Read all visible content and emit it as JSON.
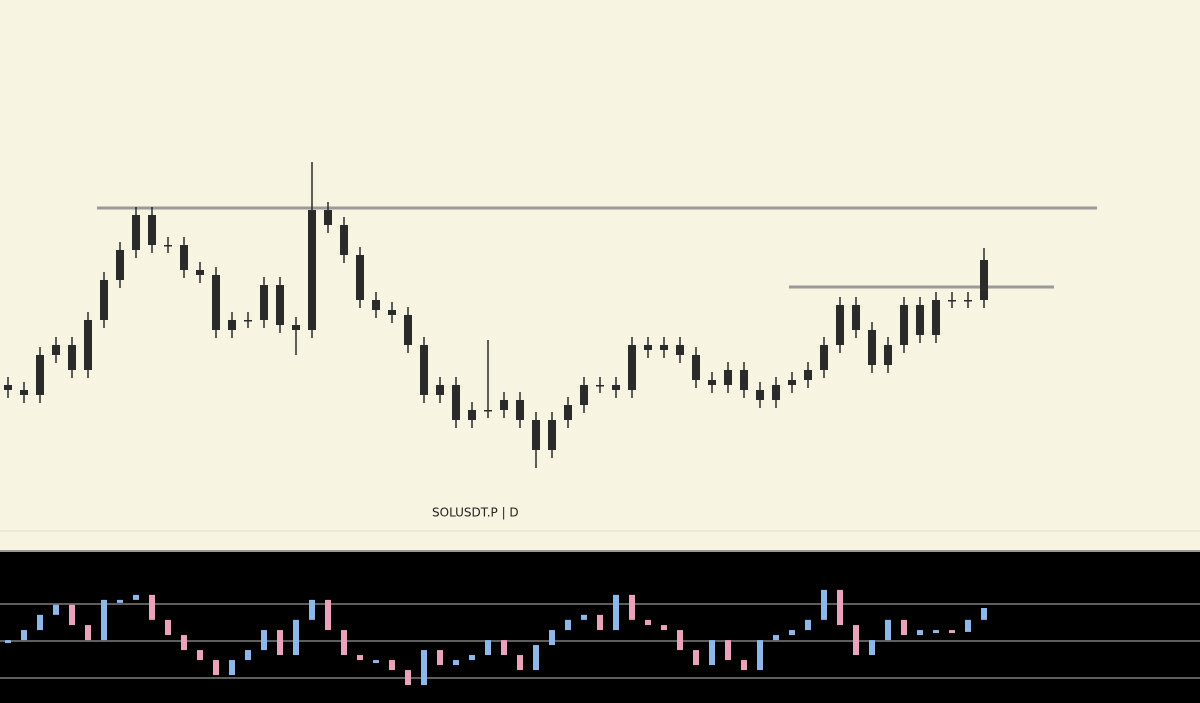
{
  "chart_data": [
    {
      "type": "candlestick",
      "title": "SOLUSDT.P | D",
      "color": "#2b2b2b",
      "level_color": "#9a9a9a",
      "ylim": [
        0,
        530
      ],
      "levels": [
        322,
        243
      ],
      "open": [
        145,
        140,
        135,
        175,
        185,
        160,
        210,
        250,
        280,
        315,
        285,
        285,
        260,
        255,
        200,
        210,
        210,
        245,
        205,
        200,
        320,
        305,
        275,
        230,
        220,
        215,
        185,
        135,
        145,
        110,
        120,
        120,
        130,
        110,
        80,
        110,
        125,
        145,
        145,
        140,
        185,
        180,
        185,
        175,
        150,
        145,
        160,
        140,
        130,
        145,
        150,
        160,
        185,
        225,
        200,
        165,
        185,
        225,
        195,
        230,
        230,
        230
      ],
      "high": [
        153,
        148,
        183,
        193,
        193,
        218,
        258,
        288,
        323,
        323,
        293,
        293,
        268,
        263,
        218,
        218,
        253,
        253,
        213,
        368,
        328,
        313,
        283,
        238,
        228,
        223,
        193,
        153,
        153,
        128,
        190,
        138,
        138,
        118,
        118,
        133,
        153,
        153,
        153,
        193,
        193,
        193,
        193,
        183,
        158,
        168,
        168,
        148,
        153,
        158,
        168,
        193,
        233,
        233,
        208,
        193,
        233,
        233,
        238,
        238,
        238,
        282
      ],
      "low": [
        132,
        127,
        127,
        167,
        152,
        152,
        202,
        242,
        272,
        277,
        277,
        252,
        247,
        192,
        192,
        202,
        202,
        197,
        175,
        192,
        297,
        267,
        222,
        212,
        207,
        177,
        127,
        127,
        102,
        102,
        112,
        112,
        102,
        62,
        72,
        102,
        117,
        137,
        132,
        132,
        172,
        172,
        167,
        142,
        137,
        137,
        132,
        122,
        122,
        137,
        142,
        152,
        177,
        192,
        157,
        157,
        177,
        187,
        187,
        222,
        222,
        222
      ],
      "close": [
        140,
        135,
        175,
        185,
        160,
        210,
        250,
        280,
        315,
        285,
        285,
        260,
        255,
        200,
        210,
        210,
        245,
        205,
        200,
        320,
        305,
        275,
        230,
        220,
        215,
        185,
        135,
        145,
        110,
        120,
        120,
        130,
        110,
        80,
        110,
        125,
        145,
        145,
        140,
        185,
        180,
        185,
        175,
        150,
        145,
        160,
        140,
        130,
        145,
        150,
        160,
        185,
        225,
        200,
        165,
        185,
        225,
        195,
        230,
        230,
        230,
        270
      ]
    },
    {
      "type": "oscillator",
      "up_color": "#8fb8ea",
      "down_color": "#eba3bd",
      "level_color": "#bbbbbb",
      "ylim": [
        16.5,
        98.6
      ],
      "levels": [
        70,
        50,
        30
      ],
      "values": [
        50.5,
        55.9,
        64.1,
        69.5,
        58.6,
        50.5,
        72.2,
        72.2,
        74.9,
        61.4,
        53.2,
        45.1,
        39.7,
        31.6,
        39.7,
        45.1,
        55.9,
        42.4,
        61.4,
        72.2,
        55.9,
        42.4,
        39.7,
        39.7,
        34.3,
        26.2,
        45.1,
        37.0,
        39.7,
        42.4,
        50.5,
        42.4,
        34.3,
        47.8,
        55.9,
        61.4,
        64.1,
        55.9,
        74.9,
        61.4,
        58.6,
        55.9,
        45.1,
        37.0,
        50.5,
        39.7,
        34.3,
        50.5,
        53.2,
        55.9,
        61.4,
        77.6,
        58.6,
        42.4,
        50.5,
        61.4,
        53.2,
        55.9,
        55.9,
        54.9,
        61.4,
        67.8
      ]
    }
  ]
}
